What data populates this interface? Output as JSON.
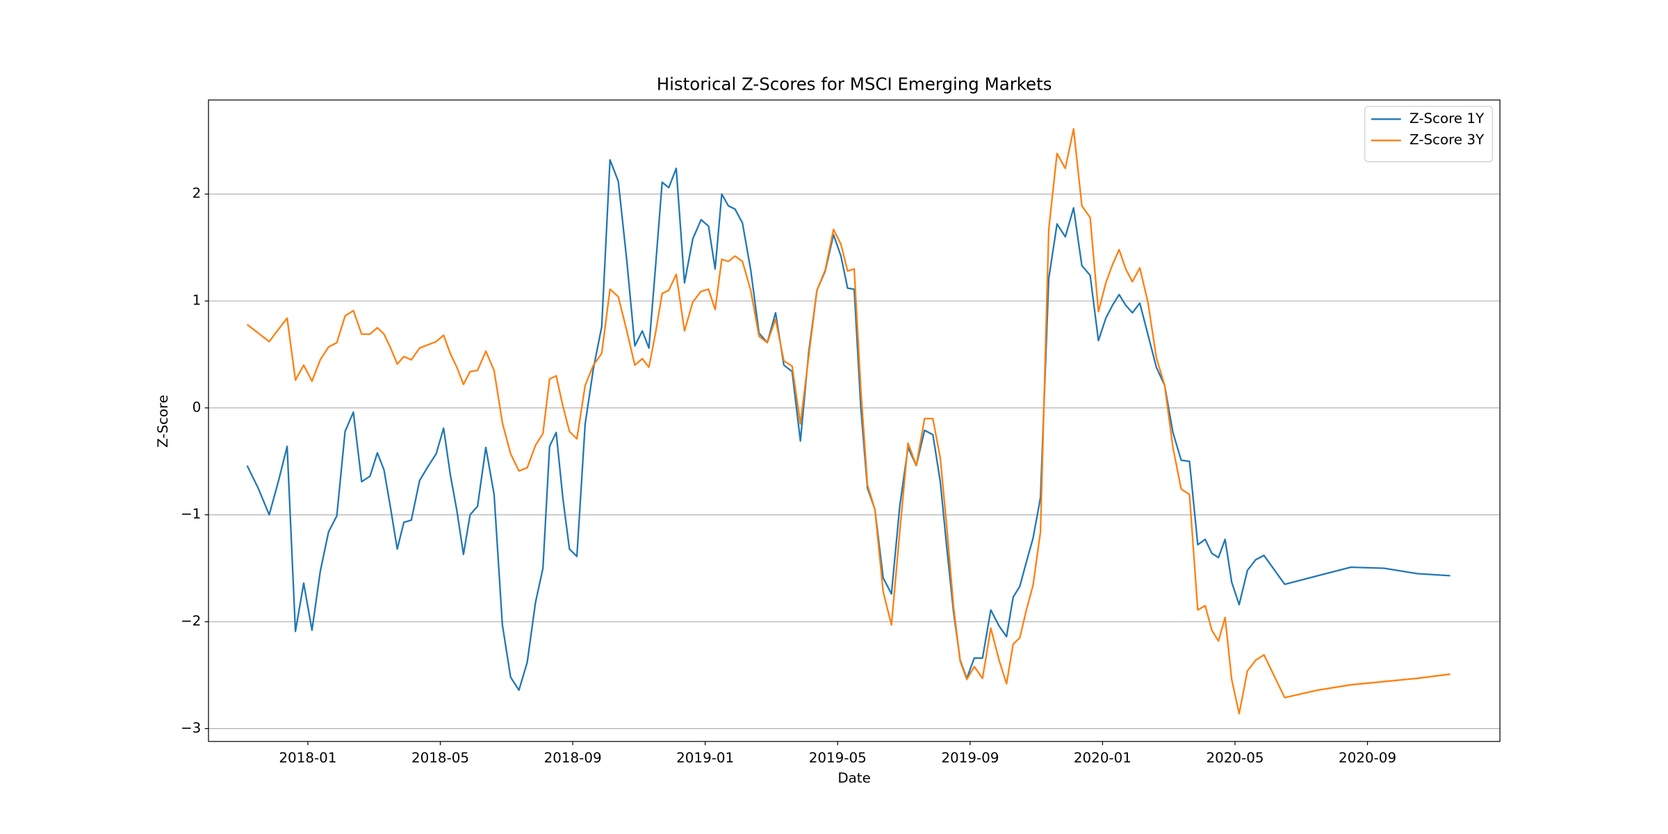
{
  "chart_data": {
    "type": "line",
    "title": "Historical Z-Scores for MSCI Emerging Markets",
    "xlabel": "Date",
    "ylabel": "Z-Score",
    "legend": "upper right",
    "grid": "y",
    "xlim": [
      "2017-10",
      "2021-01"
    ],
    "xticks": [
      "2018-01",
      "2018-05",
      "2018-09",
      "2019-01",
      "2019-05",
      "2019-09",
      "2020-01",
      "2020-05",
      "2020-09"
    ],
    "ylim": [
      -3.12,
      2.88
    ],
    "yticks": [
      {
        "value": -3,
        "label": "−3"
      },
      {
        "value": -2,
        "label": "−2"
      },
      {
        "value": -1,
        "label": "−1"
      },
      0,
      1,
      2
    ],
    "x": [
      "2017-11",
      "2017-11",
      "2017-11",
      "2017-12",
      "2017-12",
      "2017-12",
      "2017-12",
      "2018-01",
      "2018-01",
      "2018-01",
      "2018-01",
      "2018-02",
      "2018-02",
      "2018-02",
      "2018-02",
      "2018-03",
      "2018-03",
      "2018-03",
      "2018-03",
      "2018-03",
      "2018-04",
      "2018-04",
      "2018-04",
      "2018-04",
      "2018-05",
      "2018-05",
      "2018-05",
      "2018-05",
      "2018-05",
      "2018-06",
      "2018-06",
      "2018-06",
      "2018-06",
      "2018-07",
      "2018-07",
      "2018-07",
      "2018-07",
      "2018-08",
      "2018-08",
      "2018-08",
      "2018-08",
      "2018-08",
      "2018-09",
      "2018-09",
      "2018-09",
      "2018-09",
      "2018-10",
      "2018-10",
      "2018-10",
      "2018-10",
      "2018-11",
      "2018-11",
      "2018-11",
      "2018-11",
      "2018-11",
      "2018-12",
      "2018-12",
      "2018-12",
      "2018-12",
      "2019-01",
      "2019-01",
      "2019-01",
      "2019-01",
      "2019-01",
      "2019-02",
      "2019-02",
      "2019-02",
      "2019-02",
      "2019-03",
      "2019-03",
      "2019-03",
      "2019-03",
      "2019-04",
      "2019-04",
      "2019-04",
      "2019-04",
      "2019-05",
      "2019-05",
      "2019-05",
      "2019-05",
      "2019-05",
      "2019-06",
      "2019-06",
      "2019-06",
      "2019-06",
      "2019-07",
      "2019-07",
      "2019-07",
      "2019-07",
      "2019-08",
      "2019-08",
      "2019-08",
      "2019-08",
      "2019-08",
      "2019-09",
      "2019-09",
      "2019-09",
      "2019-09",
      "2019-10",
      "2019-10",
      "2019-10",
      "2019-10",
      "2019-10",
      "2019-11",
      "2019-11",
      "2019-11",
      "2019-11",
      "2019-12",
      "2019-12",
      "2019-12",
      "2019-12",
      "2020-01",
      "2020-01",
      "2020-01",
      "2020-01",
      "2020-01",
      "2020-02",
      "2020-02",
      "2020-02",
      "2020-02",
      "2020-03",
      "2020-03",
      "2020-03",
      "2020-03",
      "2020-04",
      "2020-04",
      "2020-04",
      "2020-04",
      "2020-04",
      "2020-05",
      "2020-05",
      "2020-05",
      "2020-05",
      "2020-06",
      "2020-07",
      "2020-08",
      "2020-09",
      "2020-10",
      "2020-11"
    ],
    "series": [
      {
        "name": "Z-Score 1Y",
        "color": "#1f77b4",
        "values": [
          -0.54,
          -0.75,
          -1.0,
          -0.67,
          -0.36,
          -2.09,
          -1.64,
          -2.08,
          -1.53,
          -1.16,
          -1.01,
          -0.22,
          -0.04,
          -0.69,
          -0.64,
          -0.42,
          -0.58,
          -0.94,
          -1.32,
          -1.07,
          -1.05,
          -0.68,
          -0.55,
          -0.43,
          -0.19,
          -0.62,
          -0.96,
          -1.37,
          -1.0,
          -0.92,
          -0.37,
          -0.81,
          -2.03,
          -2.52,
          -2.64,
          -2.38,
          -1.82,
          -1.5,
          -0.36,
          -0.23,
          -0.84,
          -1.32,
          -1.39,
          -0.15,
          0.37,
          0.76,
          2.32,
          2.12,
          1.4,
          0.58,
          0.72,
          0.56,
          1.32,
          2.11,
          2.06,
          2.24,
          1.17,
          1.58,
          1.76,
          1.7,
          1.3,
          2.0,
          1.89,
          1.86,
          1.73,
          1.29,
          0.7,
          0.61,
          0.89,
          0.4,
          0.34,
          -0.31,
          0.52,
          1.1,
          1.28,
          1.62,
          1.42,
          1.12,
          1.11,
          0.0,
          -0.75,
          -0.95,
          -1.59,
          -1.74,
          -0.92,
          -0.37,
          -0.54,
          -0.21,
          -0.25,
          -0.69,
          -1.32,
          -1.91,
          -2.36,
          -2.53,
          -2.34,
          -2.34,
          -1.89,
          -2.04,
          -2.14,
          -1.77,
          -1.67,
          -1.44,
          -1.22,
          -0.84,
          1.21,
          1.72,
          1.6,
          1.87,
          1.33,
          1.24,
          0.63,
          0.84,
          0.96,
          1.06,
          0.96,
          0.89,
          0.98,
          0.68,
          0.38,
          0.21,
          -0.23,
          -0.49,
          -0.5,
          -1.28,
          -1.23,
          -1.36,
          -1.4,
          -1.23,
          -1.63,
          -1.84,
          -1.52,
          -1.42,
          -1.38,
          -1.65,
          -1.57,
          -1.49,
          -1.5,
          -1.55,
          -1.57
        ]
      },
      {
        "name": "Z-Score 3Y",
        "color": "#ff7f0e",
        "values": [
          0.78,
          0.7,
          0.62,
          0.74,
          0.84,
          0.26,
          0.4,
          0.25,
          0.45,
          0.57,
          0.61,
          0.86,
          0.91,
          0.69,
          0.69,
          0.75,
          0.69,
          0.56,
          0.41,
          0.48,
          0.45,
          0.56,
          0.59,
          0.62,
          0.68,
          0.51,
          0.38,
          0.22,
          0.34,
          0.35,
          0.53,
          0.35,
          -0.14,
          -0.43,
          -0.59,
          -0.56,
          -0.35,
          -0.24,
          0.27,
          0.3,
          0.02,
          -0.22,
          -0.29,
          0.21,
          0.4,
          0.51,
          1.11,
          1.04,
          0.73,
          0.4,
          0.46,
          0.38,
          0.7,
          1.07,
          1.1,
          1.25,
          0.72,
          0.99,
          1.09,
          1.11,
          0.92,
          1.39,
          1.37,
          1.42,
          1.37,
          1.1,
          0.67,
          0.61,
          0.83,
          0.44,
          0.39,
          -0.15,
          0.48,
          1.1,
          1.29,
          1.67,
          1.53,
          1.28,
          1.3,
          0.17,
          -0.72,
          -0.95,
          -1.72,
          -2.03,
          -1.16,
          -0.33,
          -0.54,
          -0.1,
          -0.1,
          -0.47,
          -1.13,
          -1.86,
          -2.37,
          -2.54,
          -2.42,
          -2.53,
          -2.06,
          -2.36,
          -2.58,
          -2.21,
          -2.15,
          -1.89,
          -1.66,
          -1.16,
          1.67,
          2.38,
          2.24,
          2.61,
          1.89,
          1.78,
          0.9,
          1.17,
          1.34,
          1.48,
          1.3,
          1.18,
          1.31,
          0.98,
          0.47,
          0.21,
          -0.37,
          -0.76,
          -0.81,
          -1.89,
          -1.85,
          -2.08,
          -2.18,
          -1.96,
          -2.54,
          -2.86,
          -2.46,
          -2.36,
          -2.31,
          -2.71,
          -2.64,
          -2.59,
          -2.56,
          -2.53,
          -2.49
        ]
      }
    ]
  }
}
